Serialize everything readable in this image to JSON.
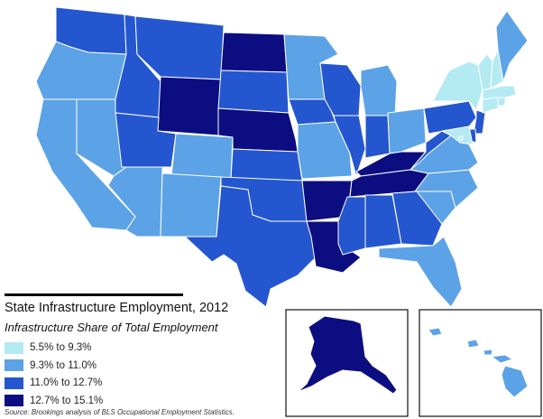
{
  "title": "State Infrastructure Employment, 2012",
  "subtitle": "Infrastructure Share of Total Employment",
  "source": "Source: Brookings analysis of BLS Occupational Employment Statistics.",
  "legend": [
    {
      "label": "5.5% to 9.3%",
      "color": "#b4eaf2"
    },
    {
      "label": "9.3% to 11.0%",
      "color": "#5ca2e6"
    },
    {
      "label": "11.0% to 12.7%",
      "color": "#2456cf"
    },
    {
      "label": "12.7% to 15.1%",
      "color": "#0d0d82"
    }
  ],
  "state_classes": {
    "WA": 2,
    "OR": 1,
    "CA": 1,
    "NV": 1,
    "ID": 2,
    "MT": 2,
    "WY": 3,
    "UT": 2,
    "AZ": 1,
    "CO": 1,
    "NM": 1,
    "ND": 3,
    "SD": 2,
    "NE": 3,
    "KS": 2,
    "OK": 2,
    "TX": 2,
    "MN": 1,
    "IA": 2,
    "MO": 1,
    "AR": 3,
    "LA": 3,
    "WI": 2,
    "IL": 2,
    "MI": 1,
    "IN": 2,
    "OH": 1,
    "KY": 3,
    "TN": 3,
    "MS": 2,
    "AL": 2,
    "GA": 2,
    "FL": 1,
    "SC": 1,
    "NC": 1,
    "VA": 1,
    "WV": 2,
    "PA": 2,
    "NY": 0,
    "VT": 0,
    "NH": 0,
    "ME": 1,
    "MA": 0,
    "RI": 0,
    "CT": 0,
    "NJ": 2,
    "DE": 2,
    "MD": 0,
    "DC": 0,
    "AK": 3,
    "HI": 1
  }
}
